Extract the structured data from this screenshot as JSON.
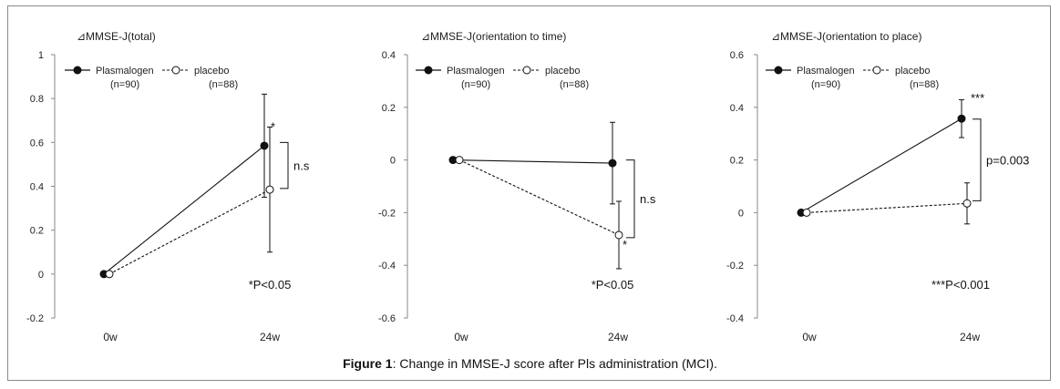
{
  "caption": {
    "label": "Figure 1",
    "text": ": Change in MMSE-J score after Pls administration (MCI)."
  },
  "chart_data": [
    {
      "type": "line",
      "title": "⊿MMSE-J(total)",
      "categories": [
        "0w",
        "24w"
      ],
      "ylim": [
        -0.2,
        1
      ],
      "yticks": [
        "-0.2",
        "0",
        "0.2",
        "0.4",
        "0.6",
        "0.8",
        "1"
      ],
      "legend": [
        {
          "name": "Plasmalogen",
          "n": "(n=90)"
        },
        {
          "name": "placebo",
          "n": "(n=88)"
        }
      ],
      "series": [
        {
          "name": "Plasmalogen",
          "values": [
            0,
            0.585
          ],
          "error": [
            0,
            0.235
          ],
          "marker": "filled",
          "line": "solid"
        },
        {
          "name": "placebo",
          "values": [
            0,
            0.385
          ],
          "error": [
            0,
            0.285
          ],
          "marker": "open",
          "line": "dashed"
        }
      ],
      "point_stars": [
        "*",
        ""
      ],
      "bracket_label": "n.s",
      "note": "*P<0.05"
    },
    {
      "type": "line",
      "title": "⊿MMSE-J(orientation to time)",
      "categories": [
        "0w",
        "24w"
      ],
      "ylim": [
        -0.6,
        0.4
      ],
      "yticks": [
        "-0.6",
        "-0.4",
        "-0.2",
        "0",
        "0.2",
        "0.4"
      ],
      "legend": [
        {
          "name": "Plasmalogen",
          "n": "(n=90)"
        },
        {
          "name": "placebo",
          "n": "(n=88)"
        }
      ],
      "series": [
        {
          "name": "Plasmalogen",
          "values": [
            0,
            -0.012
          ],
          "error": [
            0,
            0.155
          ],
          "marker": "filled",
          "line": "solid"
        },
        {
          "name": "placebo",
          "values": [
            0,
            -0.285
          ],
          "error": [
            0,
            0.128
          ],
          "marker": "open",
          "line": "dashed"
        }
      ],
      "point_stars": [
        "",
        "*"
      ],
      "bracket_label": "n.s",
      "note": "*P<0.05"
    },
    {
      "type": "line",
      "title": "⊿MMSE-J(orientation to place)",
      "categories": [
        "0w",
        "24w"
      ],
      "ylim": [
        -0.4,
        0.6
      ],
      "yticks": [
        "-0.4",
        "-0.2",
        "0",
        "0.2",
        "0.4",
        "0.6"
      ],
      "legend": [
        {
          "name": "Plasmalogen",
          "n": "(n=90)"
        },
        {
          "name": "placebo",
          "n": "(n=88)"
        }
      ],
      "series": [
        {
          "name": "Plasmalogen",
          "values": [
            0,
            0.357
          ],
          "error": [
            0,
            0.072
          ],
          "marker": "filled",
          "line": "solid"
        },
        {
          "name": "placebo",
          "values": [
            0,
            0.035
          ],
          "error": [
            0,
            0.078
          ],
          "marker": "open",
          "line": "dashed"
        }
      ],
      "point_stars": [
        "***",
        ""
      ],
      "bracket_label": "p=0.003",
      "note": "***P<0.001"
    }
  ]
}
